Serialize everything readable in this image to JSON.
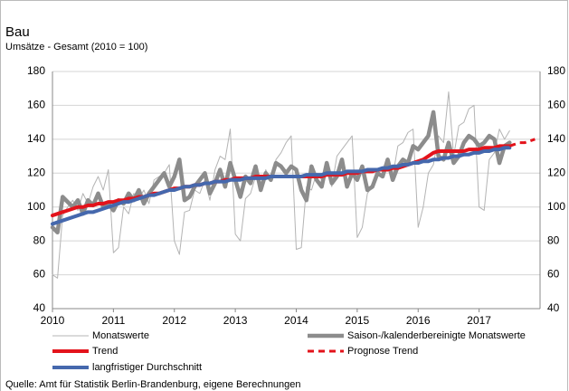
{
  "chart_data": {
    "type": "line",
    "title": "Bau",
    "subtitle": "Umsätze - Gesamt (2010 = 100)",
    "source": "Quelle: Amt für Statistik Berlin-Brandenburg, eigene Berechnungen",
    "xlim": [
      2010,
      2018
    ],
    "xticks": [
      2010,
      2011,
      2012,
      2013,
      2014,
      2015,
      2016,
      2017
    ],
    "ylim": [
      40,
      180
    ],
    "yticks": [
      40,
      60,
      80,
      100,
      120,
      140,
      160,
      180
    ],
    "grid": true,
    "x": [
      2010,
      2010.083,
      2010.167,
      2010.25,
      2010.333,
      2010.417,
      2010.5,
      2010.583,
      2010.667,
      2010.75,
      2010.833,
      2010.917,
      2011,
      2011.083,
      2011.167,
      2011.25,
      2011.333,
      2011.417,
      2011.5,
      2011.583,
      2011.667,
      2011.75,
      2011.833,
      2011.917,
      2012,
      2012.083,
      2012.167,
      2012.25,
      2012.333,
      2012.417,
      2012.5,
      2012.583,
      2012.667,
      2012.75,
      2012.833,
      2012.917,
      2013,
      2013.083,
      2013.167,
      2013.25,
      2013.333,
      2013.417,
      2013.5,
      2013.583,
      2013.667,
      2013.75,
      2013.833,
      2013.917,
      2014,
      2014.083,
      2014.167,
      2014.25,
      2014.333,
      2014.417,
      2014.5,
      2014.583,
      2014.667,
      2014.75,
      2014.833,
      2014.917,
      2015,
      2015.083,
      2015.167,
      2015.25,
      2015.333,
      2015.417,
      2015.5,
      2015.583,
      2015.667,
      2015.75,
      2015.833,
      2015.917,
      2016,
      2016.083,
      2016.167,
      2016.25,
      2016.333,
      2016.417,
      2016.5,
      2016.583,
      2016.667,
      2016.75,
      2016.833,
      2016.917,
      2017,
      2017.083,
      2017.167,
      2017.25,
      2017.333,
      2017.417,
      2017.5,
      2017.583,
      2017.667,
      2017.75,
      2017.833,
      2017.917
    ],
    "series": [
      {
        "name": "Monatswerte",
        "color": "#b4b4b4",
        "values": [
          60,
          58,
          95,
          100,
          104,
          98,
          108,
          102,
          112,
          118,
          110,
          122,
          73,
          76,
          100,
          96,
          108,
          105,
          110,
          102,
          116,
          118,
          120,
          125,
          80,
          72,
          97,
          98,
          110,
          108,
          116,
          104,
          122,
          130,
          128,
          146,
          84,
          80,
          105,
          108,
          118,
          112,
          122,
          115,
          128,
          132,
          138,
          142,
          75,
          76,
          112,
          110,
          120,
          116,
          124,
          112,
          130,
          134,
          138,
          142,
          82,
          88,
          108,
          112,
          122,
          118,
          126,
          118,
          136,
          138,
          144,
          146,
          88,
          100,
          120,
          125,
          142,
          138,
          168,
          130,
          148,
          150,
          158,
          160,
          100,
          98,
          128,
          132,
          146,
          140,
          145,
          null,
          null,
          null,
          null,
          null
        ]
      },
      {
        "name": "Saison-/kalenderbereinigte Monatswerte",
        "color": "#8c8c8c",
        "values": [
          88,
          85,
          106,
          103,
          100,
          104,
          96,
          104,
          101,
          108,
          100,
          102,
          98,
          104,
          102,
          108,
          104,
          110,
          102,
          108,
          112,
          116,
          120,
          112,
          118,
          128,
          104,
          106,
          112,
          116,
          120,
          108,
          114,
          122,
          112,
          126,
          116,
          106,
          118,
          114,
          124,
          110,
          120,
          116,
          126,
          124,
          120,
          124,
          122,
          110,
          104,
          124,
          116,
          112,
          126,
          114,
          118,
          128,
          112,
          120,
          116,
          124,
          110,
          112,
          120,
          118,
          128,
          116,
          124,
          128,
          126,
          136,
          134,
          138,
          142,
          156,
          130,
          128,
          138,
          126,
          130,
          138,
          142,
          140,
          136,
          138,
          142,
          140,
          126,
          136,
          138,
          null,
          null,
          null,
          null,
          null
        ]
      },
      {
        "name": "Trend",
        "color": "#e3131b",
        "values": [
          95,
          96,
          97,
          98,
          99,
          100,
          100,
          101,
          101,
          102,
          102,
          103,
          103,
          104,
          104,
          105,
          105,
          106,
          106,
          107,
          108,
          108,
          109,
          110,
          111,
          111,
          112,
          112,
          113,
          113,
          114,
          114,
          115,
          115,
          116,
          116,
          117,
          117,
          117,
          117,
          118,
          118,
          118,
          118,
          118,
          118,
          118,
          118,
          118,
          118,
          118,
          118,
          118,
          118,
          119,
          119,
          119,
          119,
          120,
          120,
          120,
          121,
          121,
          121,
          122,
          122,
          122,
          123,
          123,
          124,
          125,
          126,
          127,
          128,
          130,
          132,
          133,
          133,
          133,
          133,
          133,
          133,
          134,
          134,
          134,
          135,
          135,
          135,
          136,
          136,
          136,
          null,
          null,
          null,
          null,
          null
        ]
      },
      {
        "name": "langfristiger Durchschnitt",
        "color": "#4568ad",
        "values": [
          90,
          91,
          92,
          93,
          94,
          95,
          96,
          97,
          97,
          98,
          99,
          100,
          101,
          102,
          103,
          103,
          104,
          105,
          106,
          107,
          107,
          108,
          109,
          110,
          110,
          111,
          112,
          112,
          113,
          113,
          114,
          114,
          115,
          115,
          115,
          116,
          116,
          116,
          117,
          117,
          117,
          117,
          117,
          118,
          118,
          118,
          118,
          118,
          118,
          118,
          119,
          119,
          119,
          119,
          120,
          120,
          120,
          120,
          121,
          121,
          121,
          121,
          122,
          122,
          122,
          123,
          123,
          124,
          124,
          125,
          125,
          126,
          126,
          127,
          127,
          128,
          128,
          129,
          129,
          130,
          130,
          131,
          131,
          132,
          132,
          133,
          133,
          134,
          134,
          135,
          135,
          null,
          null,
          null,
          null,
          null
        ]
      },
      {
        "name": "Prognose Trend",
        "color": "#e3131b",
        "dashed": true,
        "values": [
          null,
          null,
          null,
          null,
          null,
          null,
          null,
          null,
          null,
          null,
          null,
          null,
          null,
          null,
          null,
          null,
          null,
          null,
          null,
          null,
          null,
          null,
          null,
          null,
          null,
          null,
          null,
          null,
          null,
          null,
          null,
          null,
          null,
          null,
          null,
          null,
          null,
          null,
          null,
          null,
          null,
          null,
          null,
          null,
          null,
          null,
          null,
          null,
          null,
          null,
          null,
          null,
          null,
          null,
          null,
          null,
          null,
          null,
          null,
          null,
          null,
          null,
          null,
          null,
          null,
          null,
          null,
          null,
          null,
          null,
          null,
          null,
          null,
          null,
          null,
          null,
          null,
          null,
          null,
          null,
          null,
          null,
          null,
          null,
          null,
          null,
          null,
          null,
          null,
          null,
          136,
          137,
          138,
          138,
          139,
          140
        ]
      }
    ]
  }
}
